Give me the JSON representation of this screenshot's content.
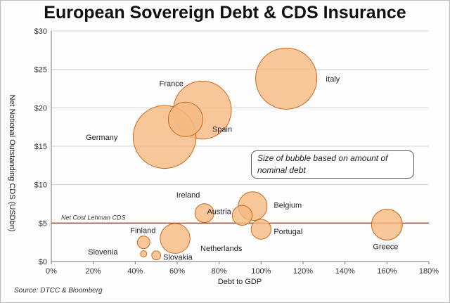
{
  "chart_data": {
    "type": "scatter",
    "title": "European Sovereign Debt & CDS Insurance",
    "xlabel": "Debt to GDP",
    "ylabel": "Net Notional Outstanding CDS (USDbn)",
    "xlim": [
      0,
      180
    ],
    "ylim": [
      0,
      30
    ],
    "x_ticks": [
      "0%",
      "20%",
      "40%",
      "60%",
      "80%",
      "100%",
      "120%",
      "140%",
      "160%",
      "180%"
    ],
    "y_ticks": [
      "$0",
      "$5",
      "$10",
      "$15",
      "$20",
      "$25",
      "$30"
    ],
    "grid": true,
    "bubble_color": "#f5b983",
    "bubble_edge": "#c96a20",
    "points": [
      {
        "label": "Italy",
        "x": 112,
        "y": 23.8,
        "size": 1900
      },
      {
        "label": "France",
        "x": 72,
        "y": 19.7,
        "size": 1700
      },
      {
        "label": "Germany",
        "x": 54,
        "y": 16.2,
        "size": 2000
      },
      {
        "label": "Spain",
        "x": 64,
        "y": 18.5,
        "size": 600
      },
      {
        "label": "Belgium",
        "x": 96,
        "y": 7.2,
        "size": 420
      },
      {
        "label": "Ireland",
        "x": 73,
        "y": 6.3,
        "size": 180
      },
      {
        "label": "Austria",
        "x": 91,
        "y": 6.0,
        "size": 200
      },
      {
        "label": "Portugal",
        "x": 100,
        "y": 4.2,
        "size": 200
      },
      {
        "label": "Netherlands",
        "x": 59,
        "y": 3.0,
        "size": 450
      },
      {
        "label": "Greece",
        "x": 160,
        "y": 4.8,
        "size": 480
      },
      {
        "label": "Finland",
        "x": 44,
        "y": 2.5,
        "size": 80
      },
      {
        "label": "Slovenia",
        "x": 44,
        "y": 1.0,
        "size": 20
      },
      {
        "label": "Slovakia",
        "x": 50,
        "y": 0.8,
        "size": 40
      }
    ],
    "reference_line": {
      "label": "Net Cost Lehman CDS",
      "y": 5,
      "color": "#c0392b"
    },
    "annotation": "Size of bubble based on amount of nominal debt",
    "source": "Source:  DTCC & Bloomberg"
  }
}
